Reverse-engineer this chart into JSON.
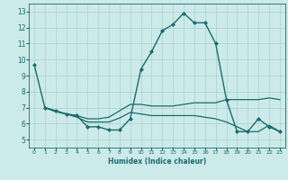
{
  "xlabel": "Humidex (Indice chaleur)",
  "bg_color": "#cceaea",
  "grid_color": "#add4d4",
  "line_color": "#1a6b6b",
  "xlim": [
    -0.5,
    23.5
  ],
  "ylim": [
    4.5,
    13.5
  ],
  "yticks": [
    5,
    6,
    7,
    8,
    9,
    10,
    11,
    12,
    13
  ],
  "xtick_labels": [
    "0",
    "1",
    "2",
    "3",
    "4",
    "5",
    "6",
    "7",
    "8",
    "9",
    "10",
    "11",
    "12",
    "13",
    "14",
    "15",
    "16",
    "17",
    "18",
    "19",
    "20",
    "21",
    "22",
    "23"
  ],
  "series": [
    {
      "x": [
        0,
        1,
        2,
        3,
        4,
        5,
        6,
        7,
        8,
        9,
        10,
        11,
        12,
        13,
        14,
        15,
        16,
        17,
        18,
        19,
        20,
        21,
        22,
        23
      ],
      "y": [
        9.7,
        7.0,
        6.8,
        6.6,
        6.5,
        5.8,
        5.8,
        5.6,
        5.6,
        6.3,
        9.4,
        10.5,
        11.8,
        12.2,
        12.9,
        12.3,
        12.3,
        11.0,
        7.5,
        5.5,
        5.5,
        6.3,
        5.8,
        5.5
      ],
      "marker": "D",
      "markersize": 2.0,
      "linewidth": 1.0
    },
    {
      "x": [
        1,
        2,
        3,
        4,
        5,
        6,
        7,
        8,
        9,
        10,
        11,
        12,
        13,
        14,
        15,
        16,
        17,
        18,
        19,
        20,
        21,
        22,
        23
      ],
      "y": [
        7.0,
        6.8,
        6.6,
        6.5,
        6.3,
        6.3,
        6.4,
        6.8,
        7.2,
        7.2,
        7.1,
        7.1,
        7.1,
        7.2,
        7.3,
        7.3,
        7.3,
        7.5,
        7.5,
        7.5,
        7.5,
        7.6,
        7.5
      ],
      "marker": null,
      "linewidth": 0.9
    },
    {
      "x": [
        1,
        2,
        3,
        4,
        5,
        6,
        7,
        8,
        9,
        10,
        11,
        12,
        13,
        14,
        15,
        16,
        17,
        18,
        19,
        20,
        21,
        22,
        23
      ],
      "y": [
        7.0,
        6.75,
        6.6,
        6.4,
        6.1,
        6.1,
        6.1,
        6.35,
        6.7,
        6.6,
        6.5,
        6.5,
        6.5,
        6.5,
        6.5,
        6.4,
        6.3,
        6.1,
        5.8,
        5.5,
        5.5,
        5.9,
        5.5
      ],
      "marker": null,
      "linewidth": 0.9
    }
  ]
}
